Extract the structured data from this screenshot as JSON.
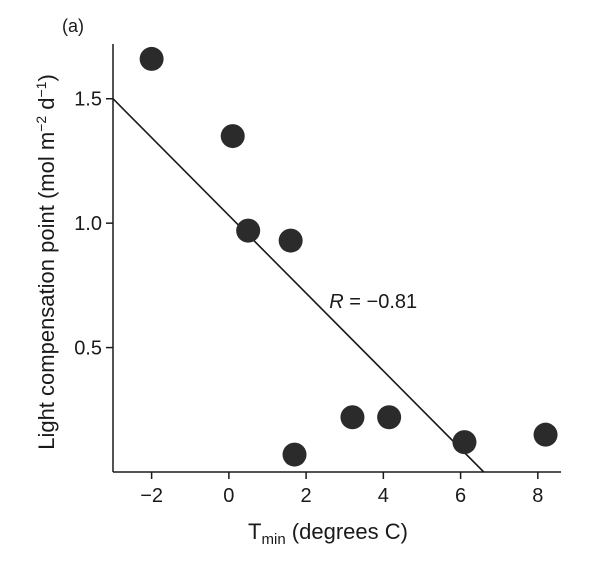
{
  "chart_data": {
    "type": "scatter",
    "panel_label": "(a)",
    "xlabel": {
      "main": "T",
      "sub": "min",
      "rest": " (degrees C)"
    },
    "ylabel": {
      "main": "Light compensation point (mol  m",
      "sup1": "−2",
      "mid": " d",
      "sup2": "−1",
      "end": ")"
    },
    "xlim": [
      -3,
      8.6
    ],
    "ylim": [
      0,
      1.72
    ],
    "x_ticks": [
      -2,
      0,
      2,
      4,
      6,
      8
    ],
    "x_tick_labels": [
      "−2",
      "0",
      "2",
      "4",
      "6",
      "8"
    ],
    "y_ticks": [
      0.5,
      1.0,
      1.5
    ],
    "y_tick_labels": [
      "0.5",
      "1.0",
      "1.5"
    ],
    "points": [
      {
        "x": -2.0,
        "y": 1.66
      },
      {
        "x": 0.1,
        "y": 1.35
      },
      {
        "x": 0.5,
        "y": 0.97
      },
      {
        "x": 1.6,
        "y": 0.93
      },
      {
        "x": 1.7,
        "y": 0.07
      },
      {
        "x": 3.2,
        "y": 0.22
      },
      {
        "x": 4.15,
        "y": 0.22
      },
      {
        "x": 6.1,
        "y": 0.12
      },
      {
        "x": 8.2,
        "y": 0.15
      }
    ],
    "regression": {
      "x1": -3.0,
      "y1": 1.5,
      "x2": 6.6,
      "y2": 0.0
    },
    "annotation": {
      "italic": "R",
      "text": " = −0.81",
      "x": 2.6,
      "y": 0.66
    },
    "grid": false,
    "marker_color": "#2b2b2b",
    "line_color": "#1a1a1a"
  }
}
